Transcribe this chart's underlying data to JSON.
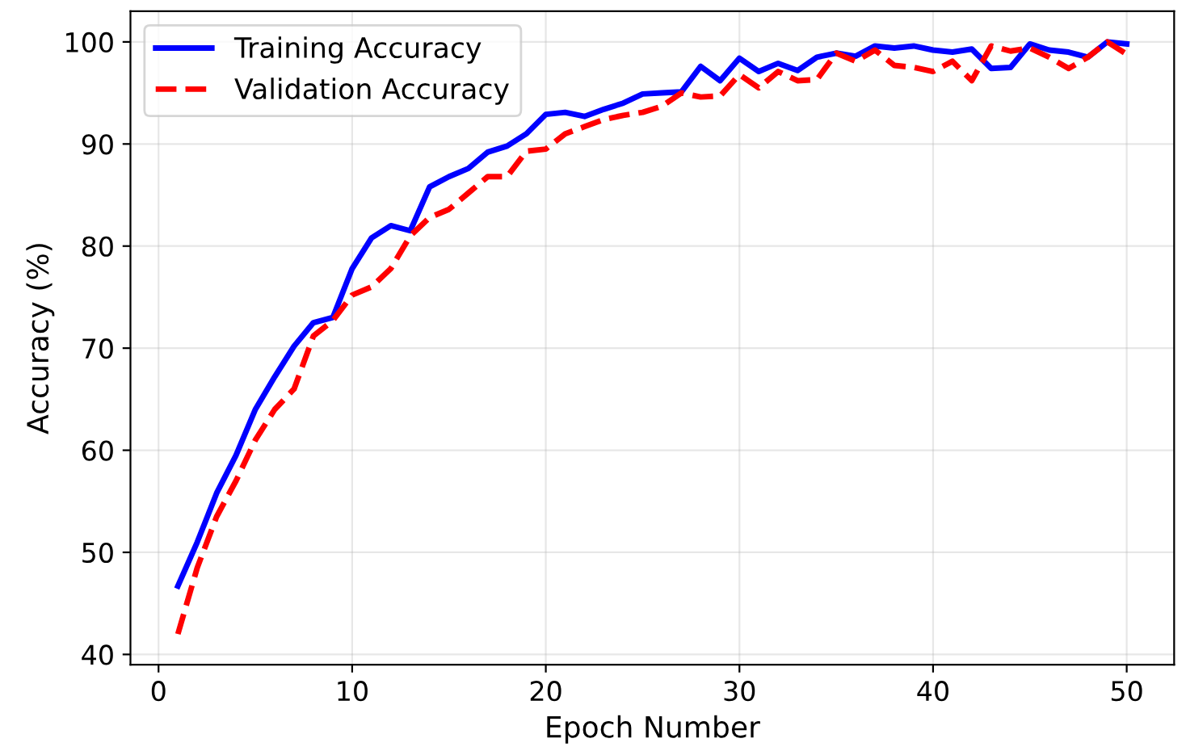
{
  "chart_data": {
    "type": "line",
    "xlabel": "Epoch Number",
    "ylabel": "Accuracy (%)",
    "x": [
      1,
      2,
      3,
      4,
      5,
      6,
      7,
      8,
      9,
      10,
      11,
      12,
      13,
      14,
      15,
      16,
      17,
      18,
      19,
      20,
      21,
      22,
      23,
      24,
      25,
      26,
      27,
      28,
      29,
      30,
      31,
      32,
      33,
      34,
      35,
      36,
      37,
      38,
      39,
      40,
      41,
      42,
      43,
      44,
      45,
      46,
      47,
      48,
      49,
      50
    ],
    "series": [
      {
        "name": "Training Accuracy",
        "color": "#0000ff",
        "line_style": "solid",
        "values": [
          46.7,
          51,
          55.8,
          59.5,
          64,
          67.2,
          70.2,
          72.5,
          73,
          77.8,
          80.8,
          82,
          81.5,
          85.8,
          86.8,
          87.6,
          89.2,
          89.8,
          91,
          92.9,
          93.1,
          92.7,
          93.4,
          94,
          94.9,
          95,
          95.1,
          97.6,
          96.2,
          98.4,
          97.1,
          97.9,
          97.2,
          98.5,
          98.9,
          98.6,
          99.6,
          99.4,
          99.6,
          99.2,
          99,
          99.3,
          97.4,
          97.5,
          99.8,
          99.2,
          99,
          98.5,
          100,
          99.8
        ]
      },
      {
        "name": "Validation Accuracy",
        "color": "#ff0000",
        "line_style": "dashed",
        "values": [
          42,
          48.5,
          53.5,
          57,
          61,
          64,
          66,
          71.2,
          72.7,
          75.2,
          76,
          77.8,
          81,
          82.8,
          83.6,
          85.2,
          86.8,
          86.8,
          89.3,
          89.5,
          91,
          91.7,
          92.4,
          92.8,
          93.1,
          93.7,
          95,
          94.6,
          94.7,
          96.8,
          95.5,
          97.1,
          96.2,
          96.3,
          98.9,
          98.1,
          99.2,
          97.7,
          97.5,
          97.1,
          98.1,
          96.2,
          99.6,
          99.1,
          99.4,
          98.5,
          97.4,
          98.5,
          100,
          98.8
        ]
      }
    ],
    "xlim": [
      -1.45,
      52.45
    ],
    "ylim": [
      39,
      103
    ],
    "xticks": [
      0,
      10,
      20,
      30,
      40,
      50
    ],
    "yticks": [
      40,
      50,
      60,
      70,
      80,
      90,
      100
    ],
    "grid": true,
    "legend": "top left",
    "marker": "none"
  }
}
